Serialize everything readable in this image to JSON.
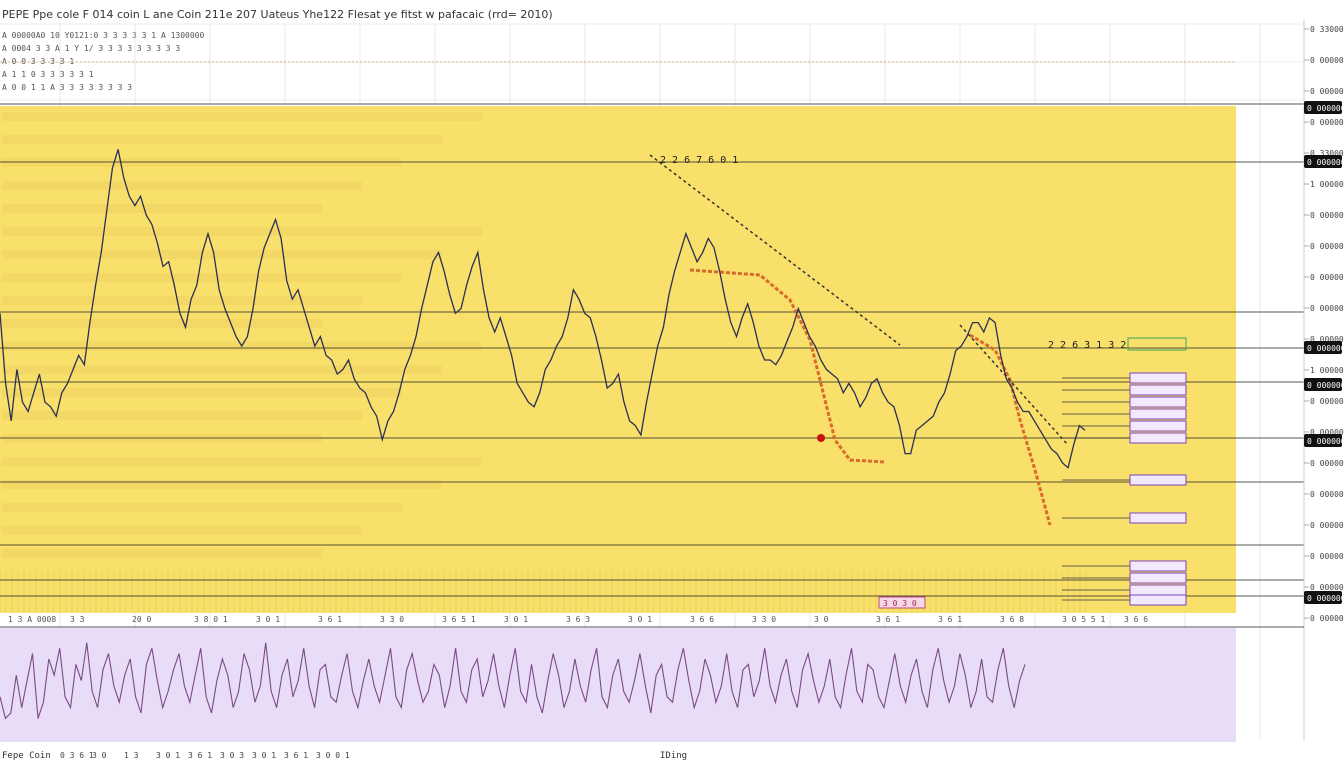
{
  "header": {
    "title": "PEPE Ppe cole F 014 coin L ane Coin 211e 207 Uateus Yhe122 Flesat ye fitst w pafacaic (rrd= 2010)",
    "info_lines": [
      "A 00000A0 10 Y0121:0 3 3 3 3 3 1 A 1300000",
      "A 0004 3 3 A 1 Y 1/ 3 3 3 3 3 3 3 3 3",
      "A 0 0 3 3 3 3 1",
      "A 1 1 0 3 3 3 3 3 1",
      "A 0 0 1 1 A 3 3 3 3 3 3 3 3"
    ]
  },
  "colors": {
    "zone_fill": "#f8e06a",
    "zone_stripe": "#efd262",
    "price_line": "#2c2f55",
    "orange_band": "#d96a2d",
    "osc_bg": "#e8dcf6",
    "osc_line": "#7a4b86",
    "tag_fill": "#f3e9ff",
    "tag_border": "#7a42b8",
    "green_tag": "#3aa55a",
    "grid": "#d9d9d9",
    "marker_red": "#cc1111"
  },
  "chart_data": {
    "type": "line",
    "title": "PEPE Ppe cole F 014 coin L ane Coin 211e 207 Uateus Yhe122 Flesat ye fitst w pafacaic (rrd= 2010)",
    "xlabel": "IDing",
    "ylabel": "",
    "ylim": [
      0,
      100
    ],
    "x_tick_labels": [
      "1 3 A 0008",
      "3 3",
      "20 0",
      "3 8 0 1",
      "3 0 1",
      "3 6 1",
      "3 3 0",
      "3 6 5 1",
      "3 0 1",
      "3 6 3",
      "3 0 1",
      "3 6 6",
      "3 3 0",
      "3 0",
      "3 6 1",
      "3 6 1",
      "3 6 8",
      "3 0 5 5 1",
      "3 6 6"
    ],
    "y_tick_labels": [
      "0 3300000",
      "0 0000000",
      "0 0000000",
      "0 0000000",
      "0 3300000",
      "1 0000000",
      "0 0000000",
      "0 0000000",
      "0 0000000",
      "0 0000000",
      "0 0000000",
      "1 0000000",
      "0 0000000",
      "0 0000000",
      "0 0000000",
      "0 0000000",
      "0 0000000",
      "0 0000000",
      "0 0000000",
      "0 0000000"
    ],
    "price_badges": [
      "0 0000000",
      "0 0000000",
      "0 0000000",
      "0 0000000",
      "0 0000000",
      "0 0000000"
    ],
    "annotations": [
      "2 2 6 7 6 0 1",
      "2 2 6 3 1 3 2",
      "3 0 3 0"
    ],
    "series": [
      {
        "values": [
          57,
          42,
          34,
          45,
          38,
          36,
          40,
          44,
          38,
          37,
          35,
          40,
          42,
          45,
          48,
          46,
          55,
          63,
          70,
          79,
          88,
          92,
          86,
          82,
          80,
          82,
          78,
          76,
          72,
          67,
          68,
          63,
          57,
          54,
          60,
          63,
          70,
          74,
          70,
          62,
          58,
          55,
          52,
          50,
          52,
          58,
          66,
          71,
          74,
          77,
          73,
          64,
          60,
          62,
          58,
          54,
          50,
          52,
          48,
          47,
          44,
          45,
          47,
          43,
          41,
          40,
          37,
          35,
          30,
          34,
          36,
          40,
          45,
          48,
          52,
          58,
          63,
          68,
          70,
          66,
          61,
          57,
          58,
          63,
          67,
          70,
          62,
          56,
          53,
          56,
          52,
          48,
          42,
          40,
          38,
          37,
          40,
          45,
          47,
          50,
          52,
          56,
          62,
          60,
          57,
          56,
          52,
          47,
          41,
          42,
          44,
          38,
          34,
          33,
          31,
          38,
          44,
          50,
          54,
          61,
          66,
          70,
          74,
          71,
          68,
          70,
          73,
          71,
          66,
          60,
          55,
          52,
          56,
          59,
          55,
          50,
          47,
          47,
          46,
          48,
          51,
          54,
          58,
          55,
          52,
          50,
          47,
          45,
          44,
          43,
          40,
          42,
          40,
          37,
          39,
          42,
          43,
          40,
          38,
          37,
          33,
          27,
          27,
          32,
          33,
          34,
          35,
          38,
          40,
          44,
          49,
          50,
          52,
          55,
          55,
          53,
          56,
          55,
          48,
          43,
          41,
          38,
          36,
          36,
          34,
          32,
          30,
          28,
          27,
          25,
          24,
          29,
          33,
          32
        ]
      }
    ],
    "oscillator": {
      "values": [
        40,
        20,
        25,
        60,
        30,
        55,
        80,
        20,
        35,
        75,
        60,
        85,
        40,
        30,
        70,
        55,
        90,
        45,
        30,
        65,
        80,
        50,
        35,
        60,
        75,
        40,
        25,
        70,
        85,
        55,
        30,
        45,
        65,
        80,
        50,
        35,
        60,
        85,
        40,
        25,
        55,
        75,
        60,
        30,
        45,
        80,
        65,
        35,
        50,
        90,
        45,
        30,
        60,
        75,
        40,
        55,
        85,
        50,
        30,
        65,
        70,
        40,
        35,
        60,
        80,
        45,
        30,
        55,
        75,
        50,
        35,
        60,
        85,
        40,
        30,
        65,
        80,
        55,
        35,
        45,
        70,
        60,
        30,
        50,
        85,
        45,
        35,
        65,
        75,
        40,
        55,
        80,
        50,
        30,
        60,
        85,
        45,
        35,
        70,
        40,
        25,
        55,
        80,
        60,
        30,
        45,
        75,
        50,
        35,
        65,
        85,
        40,
        30,
        60,
        75,
        45,
        35,
        55,
        80,
        50,
        25,
        60,
        70,
        40,
        35,
        65,
        85,
        55,
        30,
        45,
        75,
        60,
        35,
        50,
        80,
        45,
        30,
        65,
        70,
        40,
        55,
        85,
        50,
        35,
        60,
        75,
        45,
        30,
        65,
        80,
        55,
        35,
        50,
        75,
        40,
        30,
        60,
        85,
        45,
        35,
        70,
        65,
        40,
        30,
        55,
        80,
        50,
        35,
        60,
        75,
        45,
        30,
        65,
        85,
        55,
        35,
        50,
        80,
        60,
        30,
        45,
        75,
        40,
        35,
        65,
        85,
        50,
        30,
        55,
        70
      ]
    }
  },
  "footer": {
    "symbol": "Fepe Coin",
    "labels": [
      "0 3 6 1",
      "3 0",
      "1 3",
      "3 0 1",
      "3 6 1",
      "3 0 3",
      "3 0 1",
      "3 6 1",
      "3 0 0 1"
    ],
    "center_label": "IDing"
  }
}
